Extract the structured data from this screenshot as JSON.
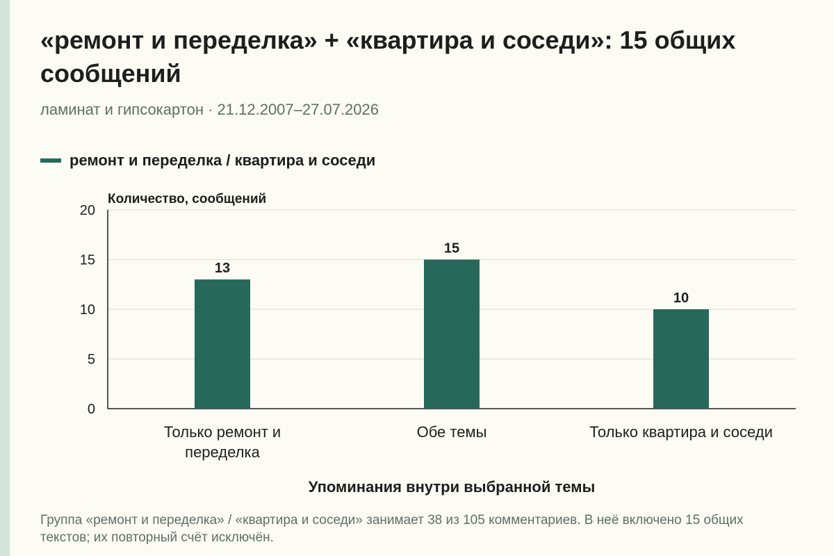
{
  "title": "«ремонт и переделка» + «квартира и соседи»: 15 общих сообщений",
  "subtitle": "ламинат и гипсокартон · 21.12.2007–27.07.2026",
  "legend_label": "ремонт и переделка / квартира и соседи",
  "footnote": "Группа «ремонт и переделка» / «квартира и соседи» занимает 38 из 105 комментариев. В неё включено 15 общих текстов; их повторный счёт исключён.",
  "chart_data": {
    "type": "bar",
    "title": "«ремонт и переделка» + «квартира и соседи»: 15 общих сообщений",
    "subtitle": "ламинат и гипсокартон · 21.12.2007–27.07.2026",
    "ylabel": "Количество, сообщений",
    "xlabel": "Упоминания внутри выбранной темы",
    "categories": [
      [
        "Только ремонт и",
        "переделка"
      ],
      [
        "Обе темы"
      ],
      [
        "Только квартира и соседи"
      ]
    ],
    "series": [
      {
        "name": "ремонт и переделка / квартира и соседи",
        "values": [
          13,
          15,
          10
        ],
        "color": "#26695a"
      }
    ],
    "ylim": [
      0,
      20
    ],
    "yticks": [
      0,
      5,
      10,
      15,
      20
    ],
    "data_labels": true,
    "grid": true,
    "legend_position": "top-left"
  }
}
